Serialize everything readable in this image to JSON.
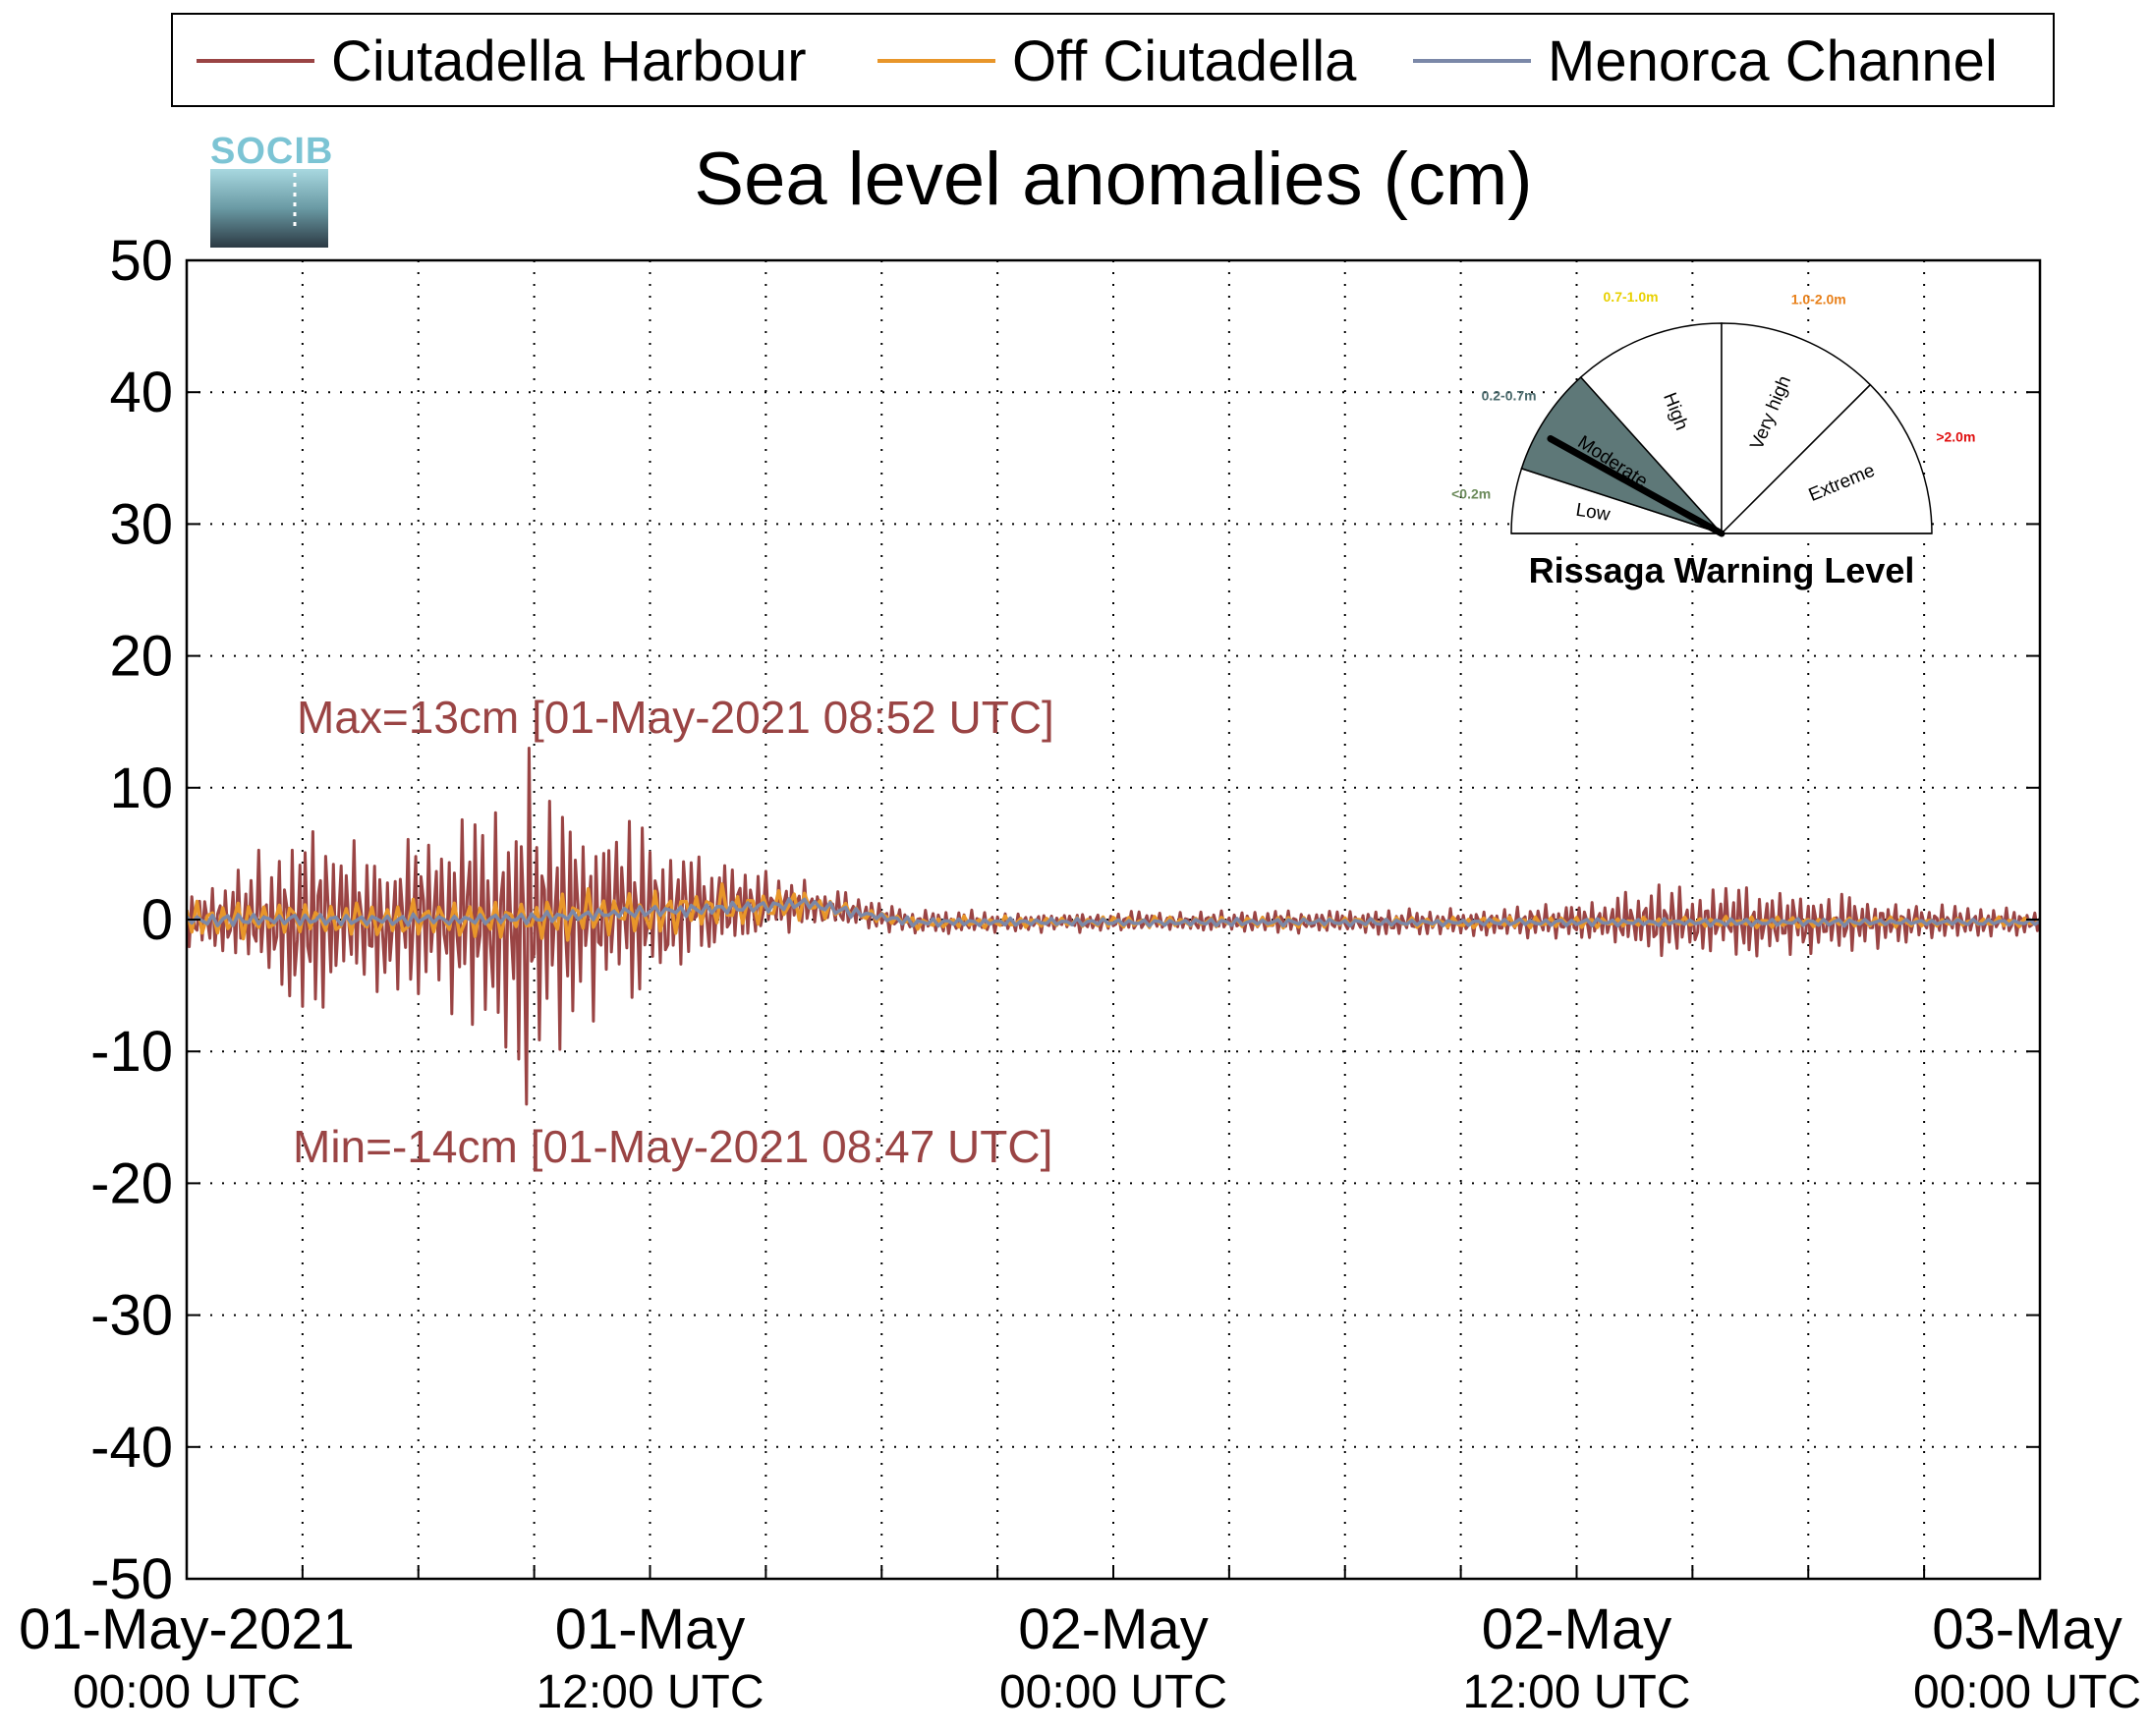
{
  "chart_data": {
    "type": "line",
    "title": "Sea level anomalies (cm)",
    "xlabel": "",
    "ylabel": "",
    "ylim": [
      -50,
      50
    ],
    "yticks": [
      50,
      40,
      30,
      20,
      10,
      0,
      -10,
      -20,
      -30,
      -40,
      -50
    ],
    "xlim": [
      "2021-05-01T00:00Z",
      "2021-05-03T00:00Z"
    ],
    "xticks": [
      {
        "value": "2021-05-01T00:00Z",
        "date": "01-May-2021",
        "time": "00:00 UTC"
      },
      {
        "value": "2021-05-01T12:00Z",
        "date": "01-May",
        "time": "12:00 UTC"
      },
      {
        "value": "2021-05-02T00:00Z",
        "date": "02-May",
        "time": "00:00 UTC"
      },
      {
        "value": "2021-05-02T12:00Z",
        "date": "02-May",
        "time": "12:00 UTC"
      },
      {
        "value": "2021-05-03T00:00Z",
        "date": "03-May",
        "time": "00:00 UTC"
      }
    ],
    "grid": true,
    "legend_position": "top",
    "series": [
      {
        "name": "Ciutadella Harbour",
        "color": "#9a4444",
        "envelope_x": [
          "2021-05-01T00:00Z",
          "2021-05-01T02:00Z",
          "2021-05-01T03:00Z",
          "2021-05-01T05:00Z",
          "2021-05-01T06:30Z",
          "2021-05-01T08:00Z",
          "2021-05-01T08:50Z",
          "2021-05-01T10:00Z",
          "2021-05-01T12:00Z",
          "2021-05-01T14:00Z",
          "2021-05-01T16:00Z",
          "2021-05-01T18:00Z",
          "2021-05-01T22:00Z",
          "2021-05-02T06:00Z",
          "2021-05-02T10:00Z",
          "2021-05-02T12:00Z",
          "2021-05-02T14:00Z",
          "2021-05-02T17:00Z",
          "2021-05-02T20:00Z",
          "2021-05-03T00:00Z"
        ],
        "envelope_amplitude": [
          2,
          6,
          8,
          6,
          7,
          9,
          13,
          9,
          7,
          4,
          2,
          1.2,
          0.8,
          1,
          1.2,
          1.5,
          3,
          3,
          2,
          1
        ],
        "max": {
          "value": 13,
          "time": "2021-05-01T08:52Z"
        },
        "min": {
          "value": -14,
          "time": "2021-05-01T08:47Z"
        }
      },
      {
        "name": "Off Ciutadella",
        "color": "#e8962a",
        "envelope_x": [
          "2021-05-01T00:00Z",
          "2021-05-01T08:00Z",
          "2021-05-01T14:00Z",
          "2021-05-01T18:00Z",
          "2021-05-02T12:00Z",
          "2021-05-03T00:00Z"
        ],
        "envelope_amplitude": [
          1.5,
          2,
          2,
          0.5,
          0.5,
          0.4
        ]
      },
      {
        "name": "Menorca Channel",
        "color": "#7b88a8",
        "envelope_x": [
          "2021-05-01T00:00Z",
          "2021-05-01T14:00Z",
          "2021-05-02T00:00Z",
          "2021-05-03T00:00Z"
        ],
        "envelope_amplitude": [
          0.5,
          0.5,
          0.3,
          0.3
        ]
      }
    ],
    "annotations": {
      "max_label": "Max=13cm [01-May-2021 08:52 UTC]",
      "min_label": "Min=-14cm [01-May-2021 08:47 UTC]",
      "color": "#9a4444"
    },
    "warning_gauge": {
      "title": "Rissaga Warning Level",
      "current_level": "Moderate",
      "levels": [
        {
          "name": "Low",
          "range": "<0.2m",
          "range_color": "#6b8a5a",
          "fill": "#ffffff"
        },
        {
          "name": "Moderate",
          "range": "0.2-0.7m",
          "range_color": "#4a6a6c",
          "fill": "#5e7878"
        },
        {
          "name": "High",
          "range": "0.7-1.0m",
          "range_color": "#e8d000",
          "fill": "#ffffff"
        },
        {
          "name": "Very high",
          "range": "1.0-2.0m",
          "range_color": "#e8801a",
          "fill": "#ffffff"
        },
        {
          "name": "Extreme",
          "range": ">2.0m",
          "range_color": "#e01010",
          "fill": "#ffffff"
        }
      ]
    },
    "logo_text": "SOCIB"
  }
}
